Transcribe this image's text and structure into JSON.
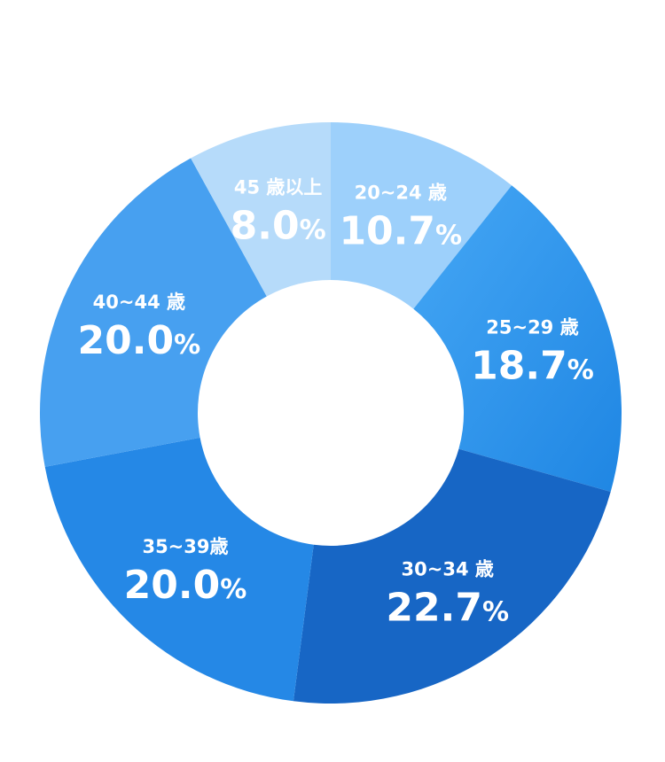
{
  "chart_data": {
    "type": "pie",
    "donut": true,
    "legend": "none",
    "unit": "%",
    "categories": [
      "20~24 歳",
      "25~29 歳",
      "30~34 歳",
      "35~39歳",
      "40~44 歳",
      "45 歳以上"
    ],
    "values": [
      10.7,
      18.7,
      22.7,
      20.0,
      20.0,
      8.0
    ],
    "value_labels": [
      "10.7",
      "18.7",
      "22.7",
      "20.0",
      "20.0",
      "8.0"
    ],
    "colors": [
      "#9dd0fb",
      "#2f95ee",
      "#1766c5",
      "#2588e6",
      "#47a0f0",
      "#b6dbfa"
    ]
  }
}
